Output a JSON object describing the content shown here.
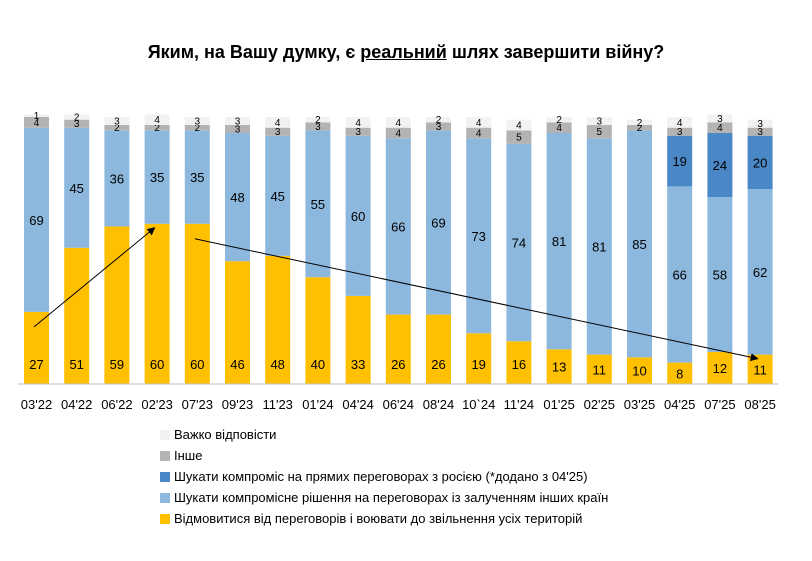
{
  "title": {
    "prefix": "Яким, на Вашу думку, є ",
    "underlined": "реальний",
    "suffix": " шлях завершити війну?"
  },
  "chart_data": {
    "type": "bar",
    "stacked": true,
    "ylim": [
      0,
      100
    ],
    "categories": [
      "03'22",
      "04'22",
      "06'22",
      "02'23",
      "07'23",
      "09'23",
      "11'23",
      "01'24",
      "04'24",
      "06'24",
      "08'24",
      "10`24",
      "11'24",
      "01'25",
      "02'25",
      "03'25",
      "04'25",
      "07'25",
      "08'25"
    ],
    "series": [
      {
        "name": "Відмовитися від переговорів і воювати до звільнення усіх територій",
        "color": "#FFC000",
        "values": [
          27,
          51,
          59,
          60,
          60,
          46,
          48,
          40,
          33,
          26,
          26,
          19,
          16,
          13,
          11,
          10,
          8,
          12,
          11
        ]
      },
      {
        "name": "Шукати компромісне рішення на переговорах із залученням інших країн",
        "color": "#8DB8DD",
        "values": [
          69,
          45,
          36,
          35,
          35,
          48,
          45,
          55,
          60,
          66,
          69,
          73,
          74,
          81,
          81,
          85,
          66,
          58,
          62
        ]
      },
      {
        "name": "Шукати компроміс на прямих переговорах з росією (*додано з 04'25)",
        "color": "#4A87C7",
        "values": [
          null,
          null,
          null,
          null,
          null,
          null,
          null,
          null,
          null,
          null,
          null,
          null,
          null,
          null,
          null,
          null,
          19,
          24,
          20
        ]
      },
      {
        "name": "Інше",
        "color": "#B3B3B3",
        "values": [
          4,
          3,
          2,
          2,
          2,
          3,
          3,
          3,
          3,
          4,
          3,
          4,
          5,
          4,
          5,
          2,
          3,
          4,
          3
        ]
      },
      {
        "name": "Важко відповісти",
        "color": "#F2F2F2",
        "values": [
          1,
          2,
          3,
          4,
          3,
          3,
          4,
          2,
          4,
          4,
          2,
          4,
          4,
          2,
          3,
          2,
          4,
          3,
          3
        ]
      }
    ],
    "legend_order": [
      4,
      3,
      2,
      1,
      0
    ],
    "arrows": [
      {
        "from_category": "03'22",
        "to_category": "02'23",
        "series": "Відмовитися від переговорів і воювати до звільнення усіх територій"
      },
      {
        "from_category": "07'23",
        "to_category": "08'25",
        "series": "Відмовитися від переговорів і воювати до звільнення усіх територій"
      }
    ]
  }
}
